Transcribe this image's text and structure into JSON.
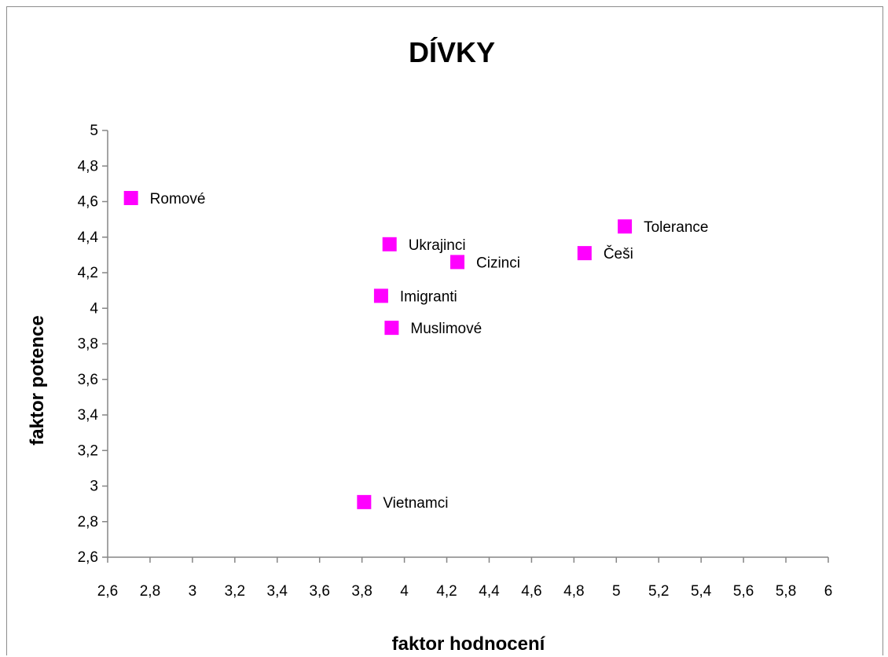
{
  "chart_data": {
    "type": "scatter",
    "title": "DÍVKY",
    "xlabel": "faktor hodnocení",
    "ylabel": "faktor potence",
    "xlim": [
      2.6,
      6
    ],
    "ylim": [
      2.6,
      5
    ],
    "x_ticks": [
      "2,6",
      "2,8",
      "3",
      "3,2",
      "3,4",
      "3,6",
      "3,8",
      "4",
      "4,2",
      "4,4",
      "4,6",
      "4,8",
      "5",
      "5,2",
      "5,4",
      "5,6",
      "5,8",
      "6"
    ],
    "y_ticks": [
      "2,6",
      "2,8",
      "3",
      "3,2",
      "3,4",
      "3,6",
      "3,8",
      "4",
      "4,2",
      "4,4",
      "4,6",
      "4,8",
      "5"
    ],
    "grid": false,
    "marker_color": "#ff00ff",
    "points": [
      {
        "label": "Romové",
        "x": 2.71,
        "y": 4.62
      },
      {
        "label": "Ukrajinci",
        "x": 3.93,
        "y": 4.36
      },
      {
        "label": "Cizinci",
        "x": 4.25,
        "y": 4.26
      },
      {
        "label": "Imigranti",
        "x": 3.89,
        "y": 4.07
      },
      {
        "label": "Muslimové",
        "x": 3.94,
        "y": 3.89
      },
      {
        "label": "Tolerance",
        "x": 5.04,
        "y": 4.46
      },
      {
        "label": "Češi",
        "x": 4.85,
        "y": 4.31
      },
      {
        "label": "Vietnamci",
        "x": 3.81,
        "y": 2.91
      }
    ]
  }
}
